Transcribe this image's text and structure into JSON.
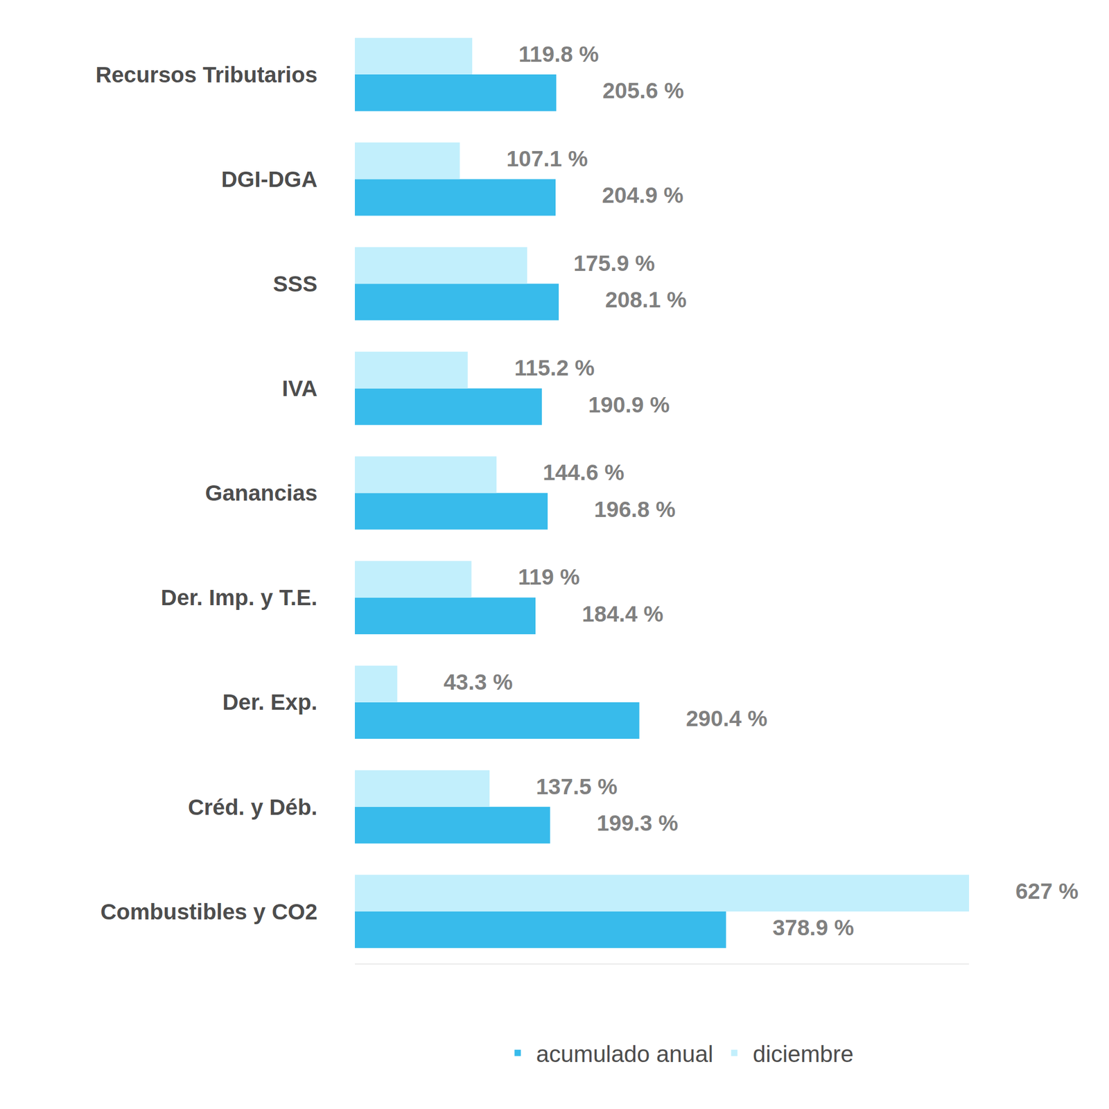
{
  "chart_data": {
    "type": "bar",
    "orientation": "horizontal",
    "categories": [
      "Recursos Tributarios",
      "DGI-DGA",
      "SSS",
      "IVA",
      "Ganancias",
      "Der. Imp. y T.E.",
      "Der. Exp.",
      "Créd. y Déb.",
      "Combustibles y CO2"
    ],
    "series": [
      {
        "name": "acumulado anual",
        "color": "#38bbeb",
        "values": [
          205.6,
          204.9,
          208.1,
          190.9,
          196.8,
          184.4,
          290.4,
          199.3,
          378.9
        ],
        "value_labels": [
          "205.6 %",
          "204.9 %",
          "208.1 %",
          "190.9 %",
          "196.8 %",
          "184.4 %",
          "290.4 %",
          "199.3 %",
          "378.9 %"
        ]
      },
      {
        "name": "diciembre",
        "color": "#c2effc",
        "values": [
          119.8,
          107.1,
          175.9,
          115.2,
          144.6,
          119,
          43.3,
          137.5,
          627
        ],
        "value_labels": [
          "119.8 %",
          "107.1 %",
          "175.9 %",
          "115.2 %",
          "144.6 %",
          "119 %",
          "43.3 %",
          "137.5 %",
          "627 %"
        ]
      }
    ],
    "xlim": [
      0,
      627
    ],
    "xticks": [],
    "data_labels": true,
    "tick_labels": "y",
    "legend": "bottom",
    "grid": false
  }
}
